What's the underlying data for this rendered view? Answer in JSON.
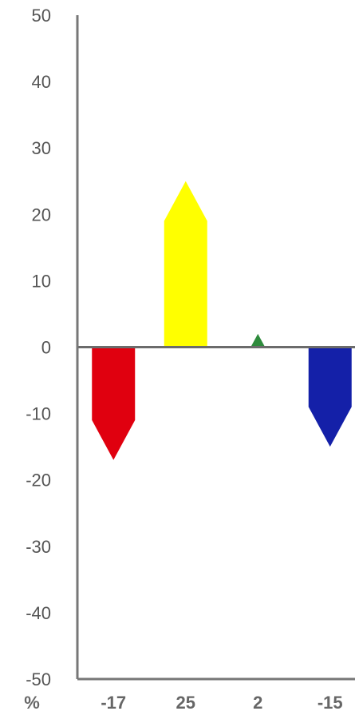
{
  "chart_data": {
    "type": "bar",
    "categories": [
      "-17",
      "25",
      "2",
      "-15"
    ],
    "values": [
      -17,
      25,
      2,
      -15
    ],
    "colors": [
      "#e0000f",
      "#ffff00",
      "#2e8b3c",
      "#1420a8"
    ],
    "unit_label": "%",
    "ylim": [
      -50,
      50
    ],
    "yticks": [
      50,
      40,
      30,
      20,
      10,
      0,
      -10,
      -20,
      -30,
      -40,
      -50
    ],
    "ytick_labels": [
      "50",
      "40",
      "30",
      "20",
      "10",
      "0",
      "-10",
      "-20",
      "-30",
      "-40",
      "-50"
    ],
    "marker_style": "arrow",
    "grid": false,
    "legend": "none",
    "axis_color": "#777777",
    "zero_line_color": "#6b6b6b"
  }
}
